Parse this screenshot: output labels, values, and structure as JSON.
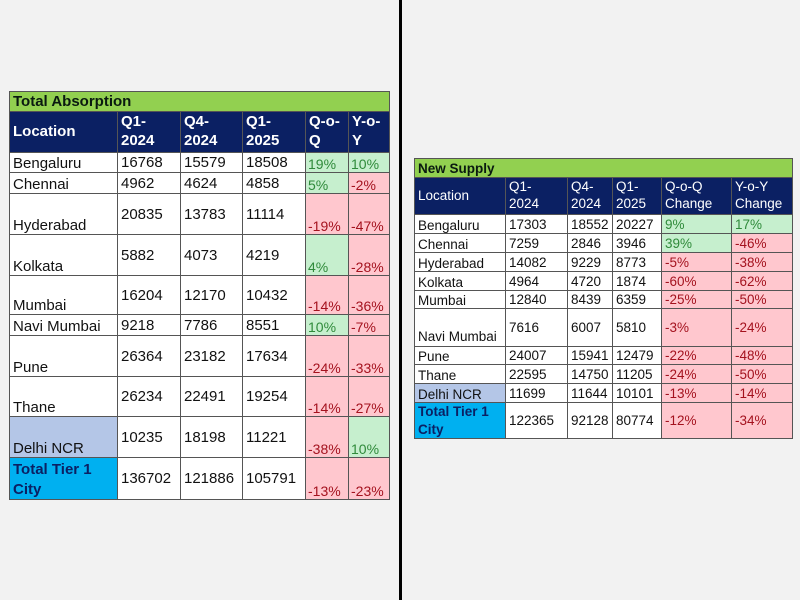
{
  "absorption": {
    "title": "Total Absorption",
    "headers": [
      "Location",
      "Q1-\n2024",
      "Q4-\n2024",
      "Q1-\n2025",
      "Q-o-\nQ",
      "Y-o-\nY"
    ],
    "rows": [
      {
        "location": "Bengaluru",
        "q1_2024": "16768",
        "q4_2024": "15579",
        "q1_2025": "18508",
        "qoq": "19%",
        "yoy": "10%"
      },
      {
        "location": "Chennai",
        "q1_2024": "4962",
        "q4_2024": "4624",
        "q1_2025": "4858",
        "qoq": "5%",
        "yoy": "-2%"
      },
      {
        "location": "Hyderabad",
        "q1_2024": "20835",
        "q4_2024": "13783",
        "q1_2025": "11114",
        "qoq": "-19%",
        "yoy": "-47%"
      },
      {
        "location": "Kolkata",
        "q1_2024": "5882",
        "q4_2024": "4073",
        "q1_2025": "4219",
        "qoq": "4%",
        "yoy": "-28%"
      },
      {
        "location": "Mumbai",
        "q1_2024": "16204",
        "q4_2024": "12170",
        "q1_2025": "10432",
        "qoq": "-14%",
        "yoy": "-36%"
      },
      {
        "location": "Navi Mumbai",
        "q1_2024": "9218",
        "q4_2024": "7786",
        "q1_2025": "8551",
        "qoq": "10%",
        "yoy": "-7%"
      },
      {
        "location": "Pune",
        "q1_2024": "26364",
        "q4_2024": "23182",
        "q1_2025": "17634",
        "qoq": "-24%",
        "yoy": "-33%"
      },
      {
        "location": "Thane",
        "q1_2024": "26234",
        "q4_2024": "22491",
        "q1_2025": "19254",
        "qoq": "-14%",
        "yoy": "-27%"
      },
      {
        "location": "Delhi NCR",
        "q1_2024": "10235",
        "q4_2024": "18198",
        "q1_2025": "11221",
        "qoq": "-38%",
        "yoy": "10%"
      },
      {
        "location": "Total Tier 1 City",
        "q1_2024": "136702",
        "q4_2024": "121886",
        "q1_2025": "105791",
        "qoq": "-13%",
        "yoy": "-23%"
      }
    ]
  },
  "supply": {
    "title": "New Supply",
    "headers": [
      "Location",
      "Q1-\n2024",
      "Q4-\n2024",
      "Q1-\n2025",
      "Q-o-Q\nChange",
      "Y-o-Y\nChange"
    ],
    "rows": [
      {
        "location": "Bengaluru",
        "q1_2024": "17303",
        "q4_2024": "18552",
        "q1_2025": "20227",
        "qoq": "9%",
        "yoy": "17%"
      },
      {
        "location": "Chennai",
        "q1_2024": "7259",
        "q4_2024": "2846",
        "q1_2025": "3946",
        "qoq": "39%",
        "yoy": "-46%"
      },
      {
        "location": "Hyderabad",
        "q1_2024": "14082",
        "q4_2024": "9229",
        "q1_2025": "8773",
        "qoq": "-5%",
        "yoy": "-38%"
      },
      {
        "location": "Kolkata",
        "q1_2024": "4964",
        "q4_2024": "4720",
        "q1_2025": "1874",
        "qoq": "-60%",
        "yoy": "-62%"
      },
      {
        "location": "Mumbai",
        "q1_2024": "12840",
        "q4_2024": "8439",
        "q1_2025": "6359",
        "qoq": "-25%",
        "yoy": "-50%"
      },
      {
        "location": "Navi Mumbai",
        "q1_2024": "7616",
        "q4_2024": "6007",
        "q1_2025": "5810",
        "qoq": "-3%",
        "yoy": "-24%"
      },
      {
        "location": "Pune",
        "q1_2024": "24007",
        "q4_2024": "15941",
        "q1_2025": "12479",
        "qoq": "-22%",
        "yoy": "-48%"
      },
      {
        "location": "Thane",
        "q1_2024": "22595",
        "q4_2024": "14750",
        "q1_2025": "11205",
        "qoq": "-24%",
        "yoy": "-50%"
      },
      {
        "location": "Delhi NCR",
        "q1_2024": "11699",
        "q4_2024": "11644",
        "q1_2025": "10101",
        "qoq": "-13%",
        "yoy": "-14%"
      },
      {
        "location": "Total Tier 1 City",
        "q1_2024": "122365",
        "q4_2024": "92128",
        "q1_2025": "80774",
        "qoq": "-12%",
        "yoy": "-34%"
      }
    ]
  },
  "colors": {
    "title_bg": "#92d050",
    "header_bg": "#0b2063",
    "positive_bg": "#c6efce",
    "negative_bg": "#ffc7ce",
    "delhi_bg": "#b4c6e7",
    "total_bg": "#00b0f0"
  }
}
